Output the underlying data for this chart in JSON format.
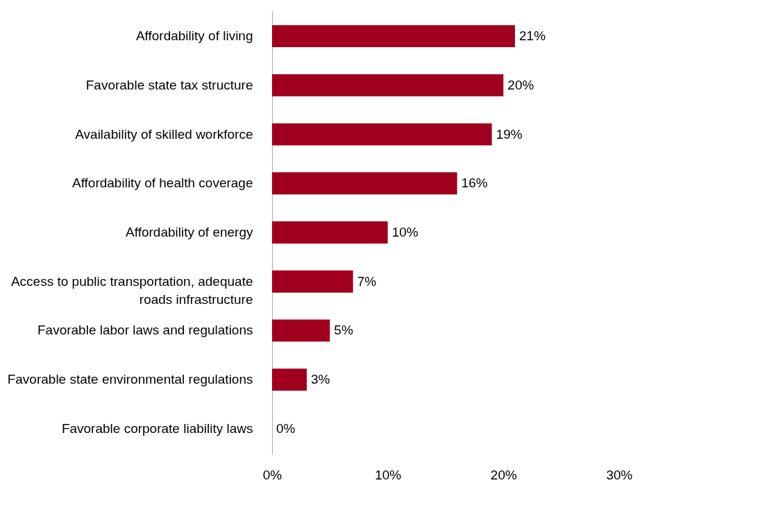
{
  "chart_data": {
    "type": "bar",
    "orientation": "horizontal",
    "categories": [
      "Affordability of  living",
      "Favorable state tax structure",
      "Availability of skilled workforce",
      "Affordability of health coverage",
      "Affordability of energy",
      "Access to public transportation, adequate\nroads infrastructure",
      "Favorable labor laws and regulations",
      "Favorable state environmental regulations",
      "Favorable corporate liability laws"
    ],
    "values": [
      21,
      20,
      19,
      16,
      10,
      7,
      5,
      3,
      0
    ],
    "value_labels": [
      "21%",
      "20%",
      "19%",
      "16%",
      "10%",
      "7%",
      "5%",
      "3%",
      "0%"
    ],
    "color": "#a0001e",
    "xlim": [
      0,
      30
    ],
    "xticks": [
      {
        "value": 0,
        "label": "0%"
      },
      {
        "value": 10,
        "label": "10%"
      },
      {
        "value": 20,
        "label": "20%"
      },
      {
        "value": 30,
        "label": "30%"
      }
    ],
    "grid": false
  }
}
